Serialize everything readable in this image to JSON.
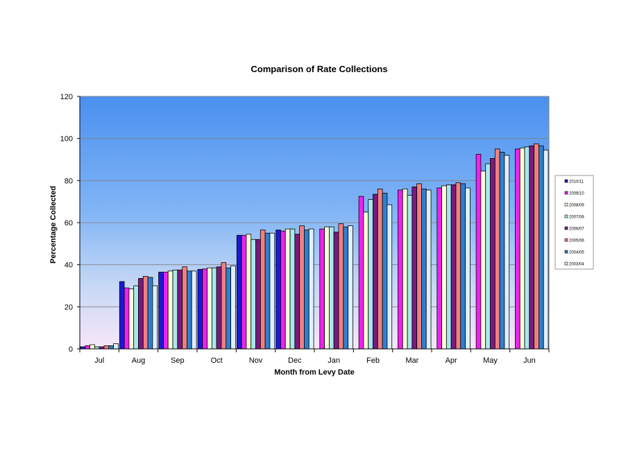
{
  "chart_data": {
    "type": "bar",
    "title": "Comparison  of Rate Collections",
    "xlabel": "Month from Levy Date",
    "ylabel": "Percentage Collected",
    "ylim": [
      0,
      120
    ],
    "yticks": [
      0,
      20,
      40,
      60,
      80,
      100,
      120
    ],
    "grid": true,
    "legend_position": "right",
    "categories": [
      "Jul",
      "Aug",
      "Sep",
      "Oct",
      "Nov",
      "Dec",
      "Jan",
      "Feb",
      "Mar",
      "Apr",
      "May",
      "Jun"
    ],
    "series": [
      {
        "name": "2010/11",
        "color": "#1a1ad6",
        "values": [
          1.0,
          32.0,
          36.5,
          37.8,
          54.0,
          56.5,
          null,
          null,
          null,
          null,
          null,
          null
        ]
      },
      {
        "name": "2009/10",
        "color": "#ee22ee",
        "values": [
          1.5,
          29.0,
          36.5,
          38.0,
          54.0,
          56.0,
          57.0,
          72.5,
          75.5,
          76.5,
          92.5,
          95.0
        ]
      },
      {
        "name": "2008/09",
        "color": "#fffbd6",
        "values": [
          2.0,
          28.5,
          37.0,
          38.5,
          54.5,
          57.0,
          58.0,
          65.0,
          76.0,
          77.5,
          84.5,
          95.5
        ]
      },
      {
        "name": "2007/08",
        "color": "#a8e8ee",
        "values": [
          1.0,
          30.0,
          37.5,
          38.5,
          52.0,
          57.0,
          58.0,
          71.0,
          73.0,
          78.0,
          88.0,
          96.0
        ]
      },
      {
        "name": "2006/07",
        "color": "#7a1a80",
        "values": [
          1.0,
          33.5,
          37.5,
          39.0,
          52.0,
          54.5,
          55.5,
          73.5,
          77.0,
          78.0,
          90.5,
          96.5
        ]
      },
      {
        "name": "2005/06",
        "color": "#f08080",
        "values": [
          1.5,
          34.5,
          39.0,
          41.0,
          56.5,
          58.5,
          59.5,
          76.0,
          78.5,
          79.0,
          95.0,
          97.5
        ]
      },
      {
        "name": "2004/05",
        "color": "#2f7fd0",
        "values": [
          1.5,
          34.0,
          37.0,
          38.5,
          55.0,
          56.5,
          58.0,
          74.0,
          76.0,
          78.5,
          93.5,
          96.5
        ]
      },
      {
        "name": "2003/04",
        "color": "#dff0ff",
        "values": [
          2.5,
          30.0,
          37.0,
          39.5,
          55.0,
          57.0,
          58.5,
          68.5,
          75.5,
          76.5,
          92.0,
          94.5
        ]
      }
    ]
  }
}
